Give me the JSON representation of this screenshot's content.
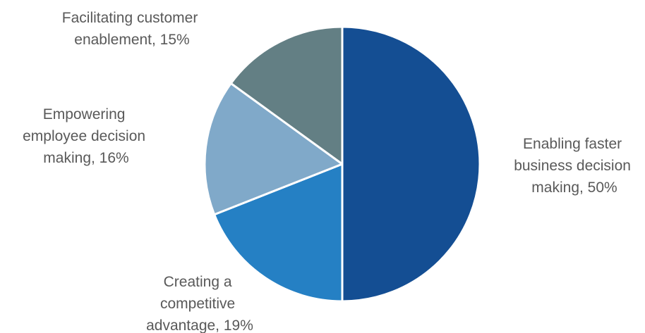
{
  "chart_data": {
    "type": "pie",
    "title": "",
    "start_angle_deg": 0,
    "direction": "clockwise",
    "slices": [
      {
        "label": "Enabling faster business decision making",
        "value": 50,
        "value_label": "50%",
        "color": "#144e93",
        "label_lines": [
          "Enabling faster",
          "business decision",
          "making, 50%"
        ]
      },
      {
        "label": "Creating a competitive advantage",
        "value": 19,
        "value_label": "19%",
        "color": "#2580c4",
        "label_lines": [
          "Creating a",
          "competitive",
          "advantage, 19%"
        ]
      },
      {
        "label": "Empowering employee decision making",
        "value": 16,
        "value_label": "16%",
        "color": "#80a9c9",
        "label_lines": [
          "Empowering",
          "employee decision",
          "making, 16%"
        ]
      },
      {
        "label": "Facilitating customer enablement",
        "value": 15,
        "value_label": "15%",
        "color": "#637f84",
        "label_lines": [
          "Facilitating customer",
          "enablement, 15%"
        ]
      }
    ]
  }
}
